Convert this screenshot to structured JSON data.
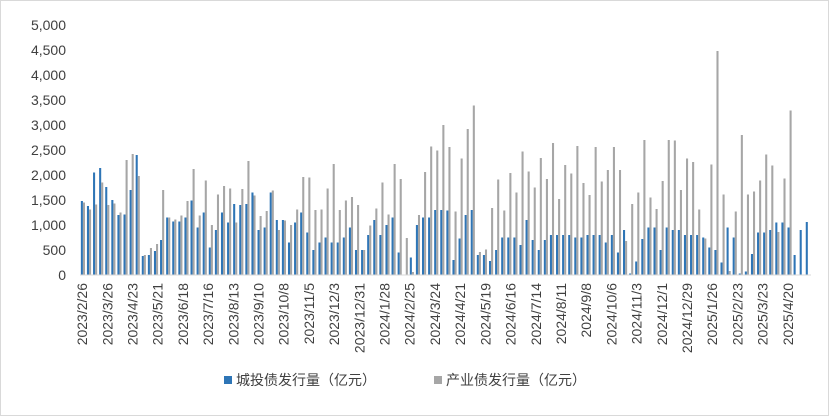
{
  "chart_data": {
    "type": "bar",
    "title": "",
    "xlabel": "",
    "ylabel": "",
    "ylim": [
      0,
      5000
    ],
    "y_ticks": [
      "0",
      "500",
      "1,000",
      "1,500",
      "2,000",
      "2,500",
      "3,000",
      "3,500",
      "4,000",
      "4,500",
      "5,000"
    ],
    "grid": false,
    "legend_position": "bottom",
    "x_tick_labels": [
      "2023/2/26",
      "2023/3/26",
      "2023/4/23",
      "2023/5/21",
      "2023/6/18",
      "2023/7/16",
      "2023/8/13",
      "2023/9/10",
      "2023/10/8",
      "2023/11/5",
      "2023/12/3",
      "2023/12/31",
      "2024/1/28",
      "2024/2/25",
      "2024/3/24",
      "2024/4/21",
      "2024/5/19",
      "2024/6/16",
      "2024/7/14",
      "2024/8/11",
      "2024/9/8",
      "2024/10/6",
      "2024/11/3",
      "2024/12/1",
      "2024/12/29",
      "2025/1/26",
      "2025/2/23",
      "2025/3/23",
      "2025/4/20"
    ],
    "series": [
      {
        "name": "城投债发行量（亿元）",
        "color": "#2e75b6",
        "values": [
          1480,
          1380,
          2050,
          2140,
          1760,
          1500,
          1200,
          1210,
          1700,
          2400,
          380,
          400,
          480,
          700,
          1150,
          1070,
          1070,
          1150,
          1490,
          950,
          1250,
          550,
          900,
          1250,
          1050,
          1420,
          1400,
          1420,
          1650,
          900,
          950,
          1650,
          1100,
          1100,
          650,
          1050,
          1250,
          850,
          500,
          650,
          750,
          650,
          650,
          750,
          950,
          500,
          500,
          800,
          1100,
          800,
          1000,
          1150,
          450,
          0,
          350,
          1000,
          1150,
          1150,
          1300,
          1300,
          1290,
          300,
          730,
          1200,
          1300,
          400,
          400,
          280,
          500,
          750,
          750,
          750,
          600,
          1100,
          700,
          500,
          700,
          800,
          800,
          800,
          800,
          750,
          750,
          800,
          800,
          800,
          650,
          800,
          450,
          900,
          30,
          270,
          720,
          950,
          950,
          500,
          950,
          900,
          900,
          800,
          800,
          800,
          750,
          550,
          500,
          250,
          950,
          750,
          30,
          70,
          420,
          850,
          850,
          900,
          1050,
          1050,
          950,
          400,
          900,
          1060
        ]
      },
      {
        "name": "产业债发行量（亿元）",
        "color": "#a6a6a6",
        "values": [
          1450,
          1310,
          1410,
          1850,
          1400,
          1430,
          1250,
          2300,
          2420,
          1980,
          400,
          540,
          620,
          1700,
          1150,
          1110,
          1190,
          1480,
          2120,
          1190,
          1890,
          1000,
          1610,
          1780,
          1730,
          1050,
          1720,
          2280,
          1590,
          1180,
          1280,
          1690,
          900,
          1090,
          1000,
          1310,
          1960,
          1950,
          1300,
          1310,
          1730,
          2220,
          1300,
          1490,
          1560,
          1400,
          500,
          990,
          1330,
          1850,
          1210,
          2220,
          1920,
          740,
          60,
          1200,
          2060,
          2570,
          2490,
          3000,
          2560,
          1270,
          2330,
          2920,
          3390,
          460,
          510,
          1340,
          1910,
          1290,
          2040,
          1650,
          2470,
          2070,
          1750,
          2340,
          1920,
          2640,
          1520,
          2200,
          2030,
          2580,
          1840,
          1600,
          2560,
          1870,
          2100,
          2560,
          2100,
          680,
          1420,
          1650,
          2700,
          1550,
          1320,
          1880,
          2700,
          2690,
          1700,
          2330,
          2260,
          1310,
          730,
          2210,
          4480,
          1610,
          80,
          1270,
          2800,
          1610,
          1670,
          1890,
          2410,
          2190,
          860,
          1930,
          3290
        ]
      }
    ]
  }
}
